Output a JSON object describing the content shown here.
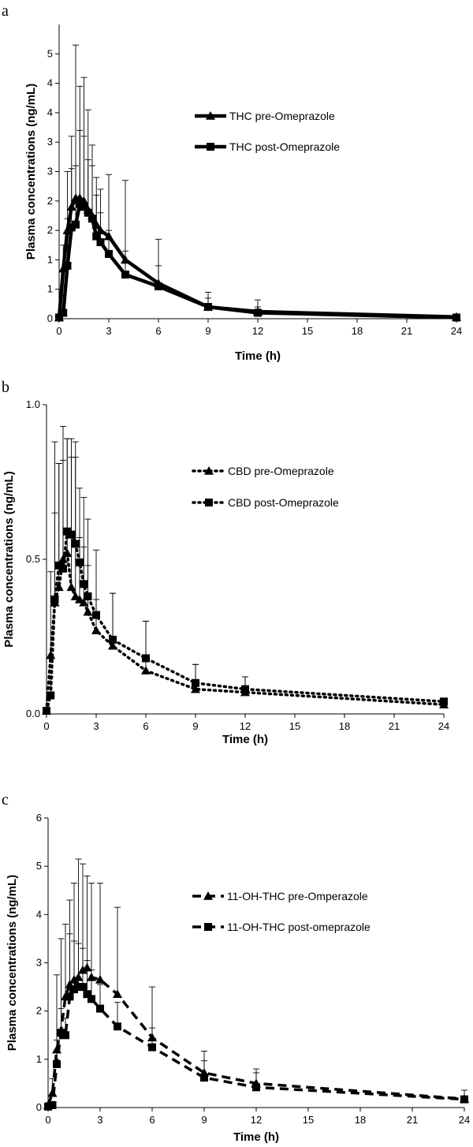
{
  "chart_data": [
    {
      "panel": "a",
      "type": "line",
      "xlabel": "Time (h)",
      "ylabel": "Plasma concentrations (ng/mL)",
      "xlim": [
        0,
        24
      ],
      "ylim": [
        0,
        5
      ],
      "xticks": [
        "0",
        "3",
        "6",
        "9",
        "12",
        "15",
        "18",
        "21",
        "24"
      ],
      "yticks": [
        "0",
        "1",
        "1",
        "2",
        "2",
        "3",
        "3",
        "4",
        "4",
        "5"
      ],
      "legend_position": "right",
      "series": [
        {
          "name": "THC pre-Omeprazole",
          "marker": "triangle",
          "dash": "solid",
          "x": [
            0,
            0.25,
            0.5,
            0.75,
            1,
            1.25,
            1.5,
            1.75,
            2,
            2.25,
            2.5,
            3,
            4,
            6,
            9,
            12,
            24
          ],
          "y": [
            0.02,
            0.85,
            1.5,
            1.9,
            2.05,
            2.05,
            2.0,
            1.85,
            1.75,
            1.6,
            1.5,
            1.4,
            1.0,
            0.6,
            0.2,
            0.12,
            0.03
          ],
          "err": [
            0.05,
            0.4,
            1.0,
            1.2,
            2.6,
            1.9,
            2.1,
            1.7,
            1.2,
            0.8,
            0.7,
            1.05,
            1.35,
            0.75,
            0.25,
            0.2,
            0.02
          ]
        },
        {
          "name": "THC post-Omeprazole",
          "marker": "square",
          "dash": "solid",
          "x": [
            0,
            0.25,
            0.5,
            0.75,
            1,
            1.25,
            1.5,
            1.75,
            2,
            2.25,
            2.5,
            3,
            4,
            6,
            9,
            12,
            24
          ],
          "y": [
            0.02,
            0.1,
            0.9,
            1.55,
            1.6,
            1.95,
            1.9,
            1.8,
            1.7,
            1.4,
            1.3,
            1.1,
            0.75,
            0.55,
            0.2,
            0.1,
            0.02
          ],
          "err": [
            0.05,
            0.3,
            0.8,
            1.0,
            1.0,
            1.25,
            1.2,
            0.9,
            0.9,
            0.7,
            0.5,
            0.4,
            0.4,
            0.35,
            0.15,
            0.1,
            0.02
          ]
        }
      ]
    },
    {
      "panel": "b",
      "type": "line",
      "xlabel": "Time (h)",
      "ylabel": "Plasma concentrations (ng/mL)",
      "xlim": [
        0,
        24
      ],
      "ylim": [
        0,
        1
      ],
      "xticks": [
        "0",
        "3",
        "6",
        "9",
        "12",
        "15",
        "18",
        "21",
        "24"
      ],
      "yticks": [
        "0.0",
        "0.5",
        "1.0"
      ],
      "legend_position": "right",
      "series": [
        {
          "name": "CBD pre-Omeprazole",
          "marker": "triangle",
          "dash": "dotted",
          "x": [
            0,
            0.25,
            0.5,
            0.75,
            1,
            1.25,
            1.5,
            1.75,
            2,
            2.25,
            2.5,
            3,
            4,
            6,
            9,
            12,
            24
          ],
          "y": [
            0.01,
            0.19,
            0.36,
            0.41,
            0.5,
            0.52,
            0.41,
            0.38,
            0.37,
            0.36,
            0.33,
            0.27,
            0.22,
            0.14,
            0.08,
            0.07,
            0.03
          ],
          "err": [
            0.01,
            0.27,
            0.52,
            0.4,
            0.43,
            0.37,
            0.42,
            0.45,
            0.2,
            0.18,
            0.15,
            0.1,
            0.17,
            0.16,
            0.08,
            0.05,
            0.01
          ]
        },
        {
          "name": "CBD post-Omeprazole",
          "marker": "square",
          "dash": "dotted",
          "x": [
            0,
            0.25,
            0.5,
            0.75,
            1,
            1.25,
            1.5,
            1.75,
            2,
            2.25,
            2.5,
            3,
            4,
            6,
            9,
            12,
            24
          ],
          "y": [
            0.01,
            0.06,
            0.37,
            0.48,
            0.47,
            0.59,
            0.58,
            0.55,
            0.49,
            0.42,
            0.38,
            0.32,
            0.24,
            0.18,
            0.1,
            0.08,
            0.04
          ],
          "err": [
            0.01,
            0.06,
            0.28,
            0.33,
            0.35,
            0.3,
            0.31,
            0.33,
            0.24,
            0.28,
            0.25,
            0.21,
            0.15,
            0.12,
            0.06,
            0.04,
            0.01
          ]
        }
      ]
    },
    {
      "panel": "c",
      "type": "line",
      "xlabel": "Time (h)",
      "ylabel": "Plasma concentrations (ng/mL)",
      "xlim": [
        0,
        24
      ],
      "ylim": [
        0,
        6
      ],
      "xticks": [
        "0",
        "3",
        "6",
        "9",
        "12",
        "15",
        "18",
        "21",
        "24"
      ],
      "yticks": [
        "0",
        "1",
        "2",
        "3",
        "4",
        "5",
        "6"
      ],
      "legend_position": "right",
      "series": [
        {
          "name": "11-OH-THC pre-Omperazole",
          "marker": "triangle",
          "dash": "dashed",
          "x": [
            0,
            0.25,
            0.5,
            0.75,
            1,
            1.25,
            1.5,
            1.75,
            2,
            2.25,
            2.5,
            3,
            4,
            6,
            9,
            12,
            24
          ],
          "y": [
            0.05,
            0.3,
            1.2,
            1.6,
            2.3,
            2.55,
            2.65,
            2.7,
            2.85,
            2.9,
            2.7,
            2.65,
            2.35,
            1.45,
            0.72,
            0.5,
            0.18
          ],
          "err": [
            0.05,
            0.3,
            1.55,
            1.9,
            1.5,
            1.75,
            2.0,
            2.45,
            2.2,
            1.9,
            1.95,
            2.0,
            1.8,
            1.05,
            0.45,
            0.3,
            0.18
          ]
        },
        {
          "name": "11-OH-THC post-omeprazole",
          "marker": "square",
          "dash": "dashed",
          "x": [
            0,
            0.25,
            0.5,
            0.75,
            1,
            1.25,
            1.5,
            1.75,
            2,
            2.25,
            2.5,
            3,
            4,
            6,
            9,
            12,
            24
          ],
          "y": [
            0.02,
            0.05,
            0.9,
            1.55,
            1.5,
            2.3,
            2.45,
            2.5,
            2.5,
            2.35,
            2.25,
            2.05,
            1.68,
            1.25,
            0.62,
            0.42,
            0.17
          ],
          "err": [
            0.02,
            0.05,
            0.5,
            0.5,
            0.35,
            1.3,
            1.0,
            0.9,
            0.8,
            0.7,
            0.6,
            0.5,
            0.5,
            0.4,
            0.35,
            0.3,
            0.02
          ]
        }
      ]
    }
  ]
}
